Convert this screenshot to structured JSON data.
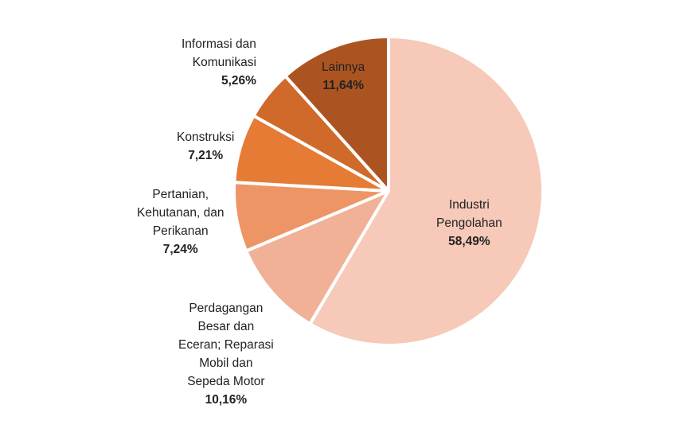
{
  "chart_data": {
    "type": "pie",
    "start_angle_deg": 0,
    "direction": "clockwise",
    "slices": [
      {
        "label": "Industri Pengolahan",
        "display_value": "58,49%",
        "value": 58.49,
        "color": "#f6c9b8"
      },
      {
        "label": "Perdagangan Besar dan Eceran; Reparasi Mobil dan Sepeda Motor",
        "display_value": "10,16%",
        "value": 10.16,
        "color": "#f0b197"
      },
      {
        "label": "Pertanian, Kehutanan, dan Perikanan",
        "display_value": "7,24%",
        "value": 7.24,
        "color": "#ee9566"
      },
      {
        "label": "Konstruksi",
        "display_value": "7,21%",
        "value": 7.21,
        "color": "#e57b35"
      },
      {
        "label": "Informasi dan Komunikasi",
        "display_value": "5,26%",
        "value": 5.26,
        "color": "#cf6a2a"
      },
      {
        "label": "Lainnya",
        "display_value": "11,64%",
        "value": 11.64,
        "color": "#ac5421"
      }
    ],
    "labels": {
      "industri": {
        "lines": [
          "Industri",
          "Pengolahan"
        ],
        "pct": "58,49%"
      },
      "perdagangan": {
        "lines": [
          "Perdagangan",
          "Besar dan",
          "Eceran; Reparasi",
          "Mobil dan",
          "Sepeda Motor"
        ],
        "pct": "10,16%"
      },
      "pertanian": {
        "lines": [
          "Pertanian,",
          "Kehutanan, dan",
          "Perikanan"
        ],
        "pct": "7,24%"
      },
      "konstruksi": {
        "lines": [
          "Konstruksi"
        ],
        "pct": "7,21%"
      },
      "informasi": {
        "lines": [
          "Informasi dan",
          "Komunikasi"
        ],
        "pct": "5,26%"
      },
      "lainnya": {
        "lines": [
          "Lainnya"
        ],
        "pct": "11,64%"
      }
    },
    "legend": "none"
  }
}
